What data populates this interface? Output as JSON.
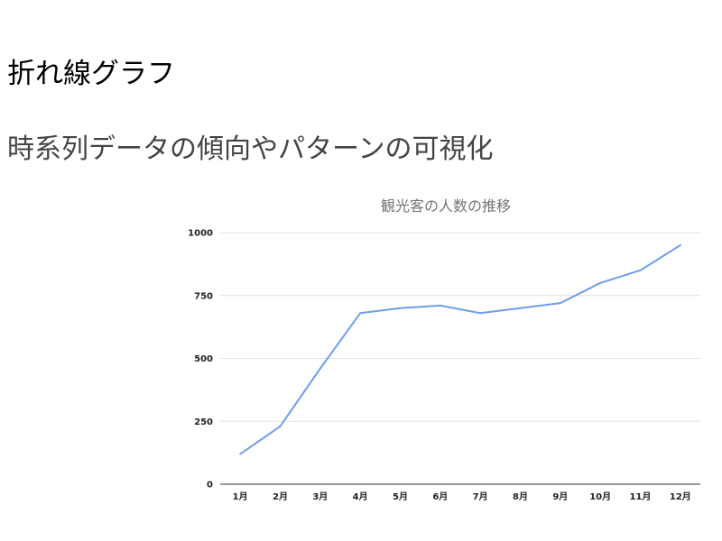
{
  "title": "折れ線グラフ",
  "subtitle": "時系列データの傾向やパターンの可視化",
  "colors": {
    "series": "#6d9eeb",
    "grid": "#e2e2e2",
    "axis": "#333333",
    "chart_title": "#757575"
  },
  "chart_data": {
    "type": "line",
    "title": "観光客の人数の推移",
    "xlabel": "",
    "ylabel": "",
    "categories": [
      "1月",
      "2月",
      "3月",
      "4月",
      "5月",
      "6月",
      "7月",
      "8月",
      "9月",
      "10月",
      "11月",
      "12月"
    ],
    "series": [
      {
        "values": [
          120,
          230,
          460,
          680,
          700,
          710,
          680,
          700,
          720,
          800,
          850,
          950
        ]
      }
    ],
    "ylim": [
      0,
      1000
    ],
    "yticks": [
      0,
      250,
      500,
      750,
      1000
    ],
    "grid": true,
    "legend": "none"
  }
}
